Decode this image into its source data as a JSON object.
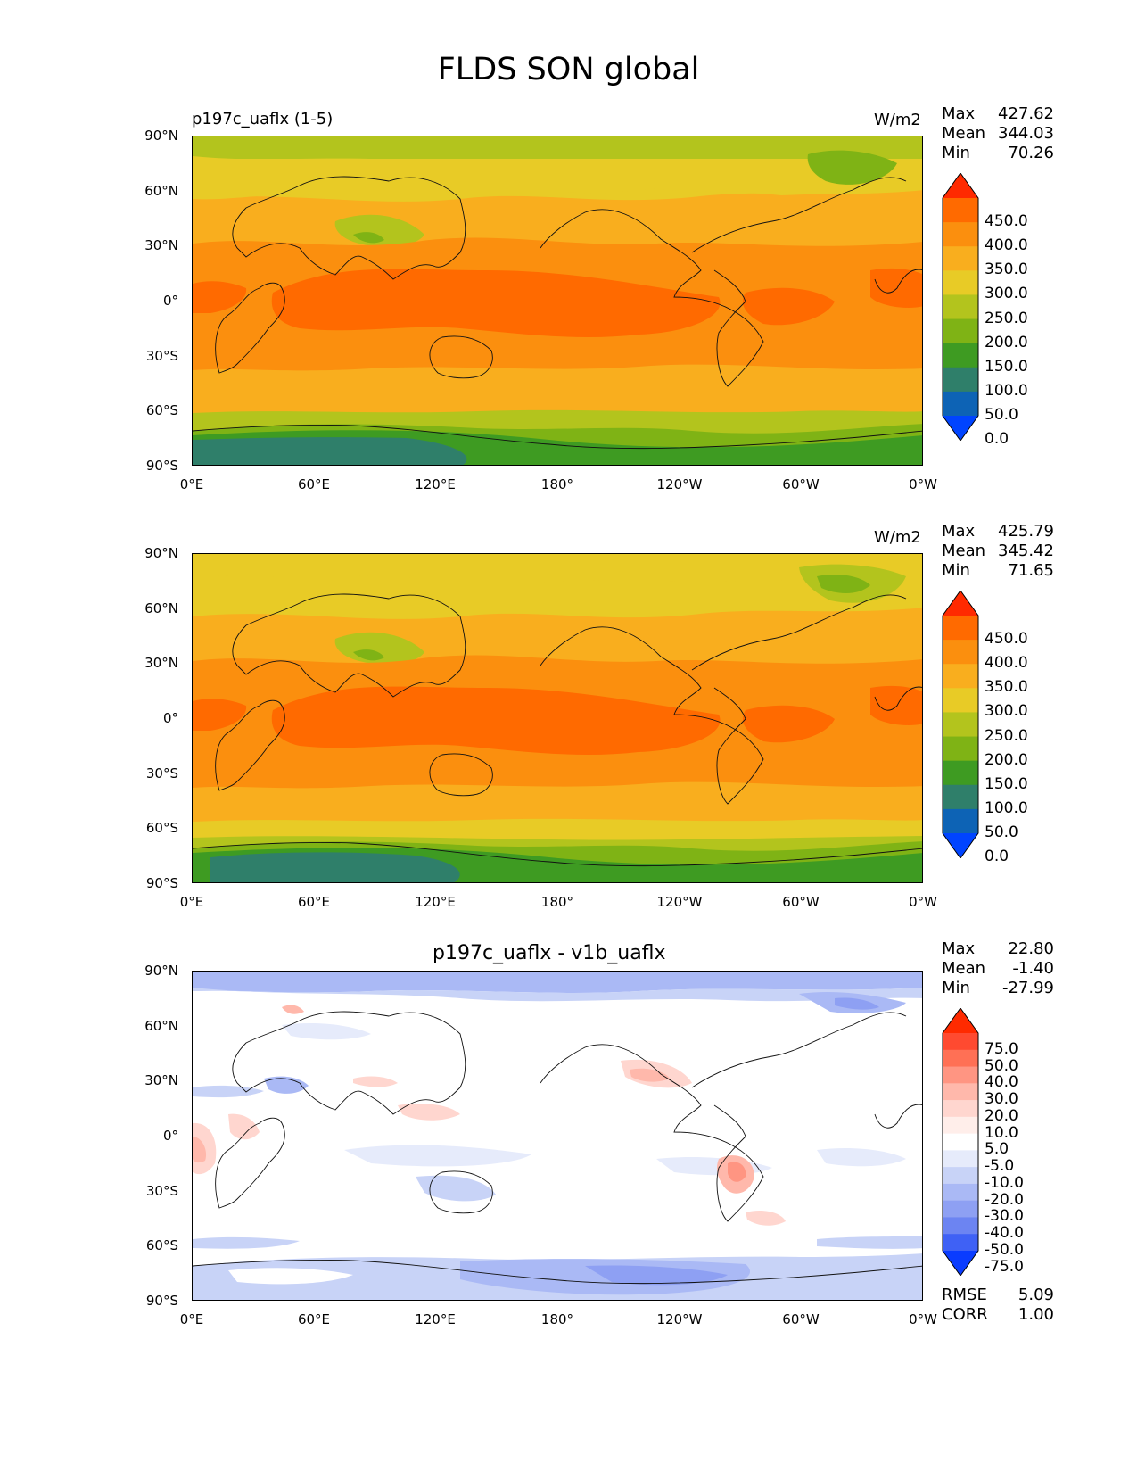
{
  "figure": {
    "title": "FLDS SON global"
  },
  "axes": {
    "yticks": [
      "90°N",
      "60°N",
      "30°N",
      "0°",
      "30°S",
      "60°S",
      "90°S"
    ],
    "xticks": [
      "0°E",
      "60°E",
      "120°E",
      "180°",
      "120°W",
      "60°W",
      "0°W"
    ]
  },
  "panels": [
    {
      "title": "",
      "left_label": "p197c_uaflx (1-5)",
      "units": "W/m2",
      "stats": {
        "max_label": "Max",
        "max": "427.62",
        "mean_label": "Mean",
        "mean": "344.03",
        "min_label": "Min",
        "min": "70.26"
      },
      "colorbar": {
        "labels": [
          "450.0",
          "400.0",
          "350.0",
          "300.0",
          "250.0",
          "200.0",
          "150.0",
          "100.0",
          "50.0",
          "0.0"
        ],
        "colors": [
          "#ff2a00",
          "#ff6a00",
          "#fb8f0e",
          "#f9ae1e",
          "#e8cb26",
          "#b3c41d",
          "#7fb315",
          "#3e9b22",
          "#2f7f6a",
          "#0d63b5",
          "#0044ff"
        ]
      }
    },
    {
      "title": "",
      "left_label": "",
      "units": "W/m2",
      "stats": {
        "max_label": "Max",
        "max": "425.79",
        "mean_label": "Mean",
        "mean": "345.42",
        "min_label": "Min",
        "min": "71.65"
      },
      "colorbar": {
        "labels": [
          "450.0",
          "400.0",
          "350.0",
          "300.0",
          "250.0",
          "200.0",
          "150.0",
          "100.0",
          "50.0",
          "0.0"
        ],
        "colors": [
          "#ff2a00",
          "#ff6a00",
          "#fb8f0e",
          "#f9ae1e",
          "#e8cb26",
          "#b3c41d",
          "#7fb315",
          "#3e9b22",
          "#2f7f6a",
          "#0d63b5",
          "#0044ff"
        ]
      }
    },
    {
      "title": "p197c_uaflx - v1b_uaflx",
      "left_label": "",
      "units": "",
      "stats": {
        "max_label": "Max",
        "max": "22.80",
        "mean_label": "Mean",
        "mean": "-1.40",
        "min_label": "Min",
        "min": "-27.99"
      },
      "metrics": {
        "rmse_label": "RMSE",
        "rmse": "5.09",
        "corr_label": "CORR",
        "corr": "1.00"
      },
      "colorbar": {
        "labels": [
          "75.0",
          "50.0",
          "40.0",
          "30.0",
          "20.0",
          "10.0",
          "5.0",
          "-5.0",
          "-10.0",
          "-20.0",
          "-30.0",
          "-40.0",
          "-50.0",
          "-75.0"
        ],
        "colors": [
          "#ff2a00",
          "#ff4a30",
          "#ff7055",
          "#ff9582",
          "#ffb8ab",
          "#ffd6cf",
          "#ffeeea",
          "#ffffff",
          "#e6ebfb",
          "#c8d3f7",
          "#aab9f5",
          "#8ea0f3",
          "#6c84f2",
          "#3f61f5",
          "#0a3cff"
        ]
      }
    }
  ]
}
